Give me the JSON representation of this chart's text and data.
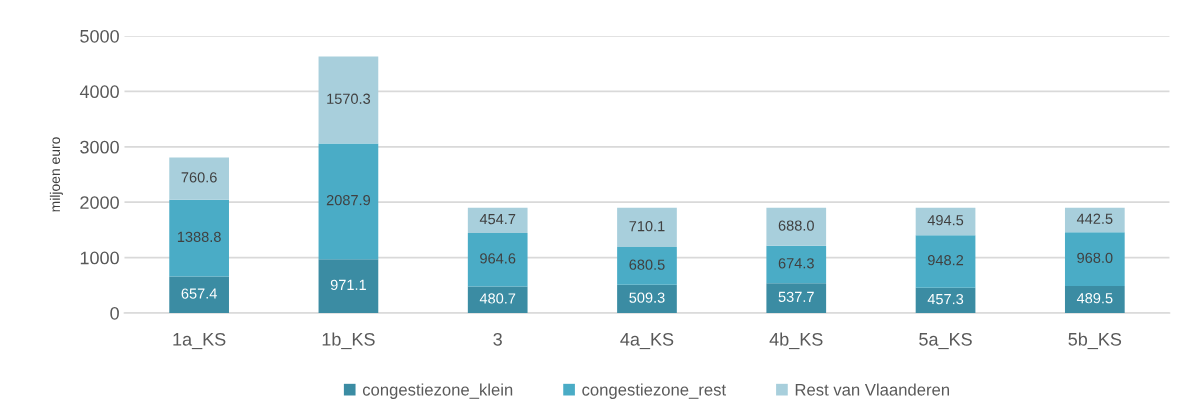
{
  "chart_data": {
    "type": "bar",
    "stacked": true,
    "ylabel": "miljoen euro",
    "categories": [
      "1a_KS",
      "1b_KS",
      "3",
      "4a_KS",
      "4b_KS",
      "5a_KS",
      "5b_KS"
    ],
    "series": [
      {
        "name": "congestiezone_klein",
        "color": "#3b8ca3",
        "values": [
          657.4,
          971.1,
          480.7,
          509.3,
          537.7,
          457.3,
          489.5
        ],
        "value_labels": [
          "657.4",
          "971.1",
          "480.7",
          "509.3",
          "537.7",
          "457.3",
          "489.5"
        ]
      },
      {
        "name": "congestiezone_rest",
        "color": "#4aacc6",
        "values": [
          1388.8,
          2087.9,
          964.6,
          680.5,
          674.3,
          948.2,
          968
        ],
        "value_labels": [
          "1388.8",
          "2087.9",
          "964.6",
          "680.5",
          "674.3",
          "948.2",
          "968.0"
        ]
      },
      {
        "name": "Rest van Vlaanderen",
        "color": "#a8cfdc",
        "values": [
          760.6,
          1570.3,
          454.7,
          710.1,
          688,
          494.5,
          442.5
        ],
        "value_labels": [
          "760.6",
          "1570.3",
          "454.7",
          "710.1",
          "688.0",
          "494.5",
          "442.5"
        ]
      }
    ],
    "ylim": [
      0,
      5000
    ],
    "yticks": [
      0,
      1000,
      2000,
      3000,
      4000,
      5000
    ],
    "grid": "y",
    "legend": "bottom"
  }
}
